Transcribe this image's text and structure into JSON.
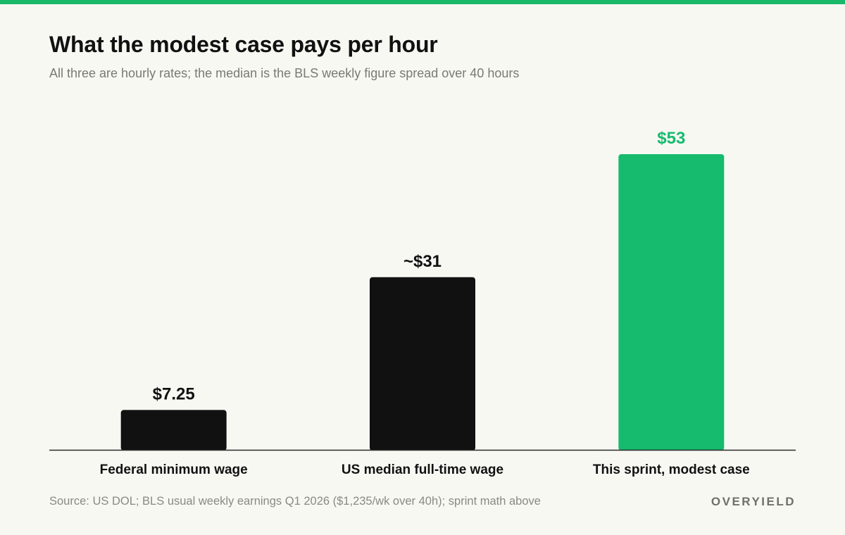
{
  "header": {
    "title": "What the modest case pays per hour",
    "subtitle": "All three are hourly rates; the median is the BLS weekly figure spread over 40 hours"
  },
  "footer": {
    "source": "Source: US DOL; BLS usual weekly earnings Q1 2026 ($1,235/wk over 40h); sprint math above",
    "brand": "OVERYIELD"
  },
  "colors": {
    "accent": "#1ab96a",
    "bar_default": "#111111",
    "bar_highlight": "#16bb6e",
    "background": "#f8f8f3"
  },
  "chart_data": {
    "type": "bar",
    "title": "What the modest case pays per hour",
    "subtitle": "All three are hourly rates; the median is the BLS weekly figure spread over 40 hours",
    "xlabel": "",
    "ylabel": "",
    "ylim": [
      0,
      55
    ],
    "grid": false,
    "legend": "none",
    "categories": [
      "Federal minimum wage",
      "US median full-time wage",
      "This sprint, modest case"
    ],
    "values": [
      7.25,
      31,
      53
    ],
    "value_labels": [
      "$7.25",
      "~$31",
      "$53"
    ],
    "highlight": [
      false,
      false,
      true
    ]
  }
}
